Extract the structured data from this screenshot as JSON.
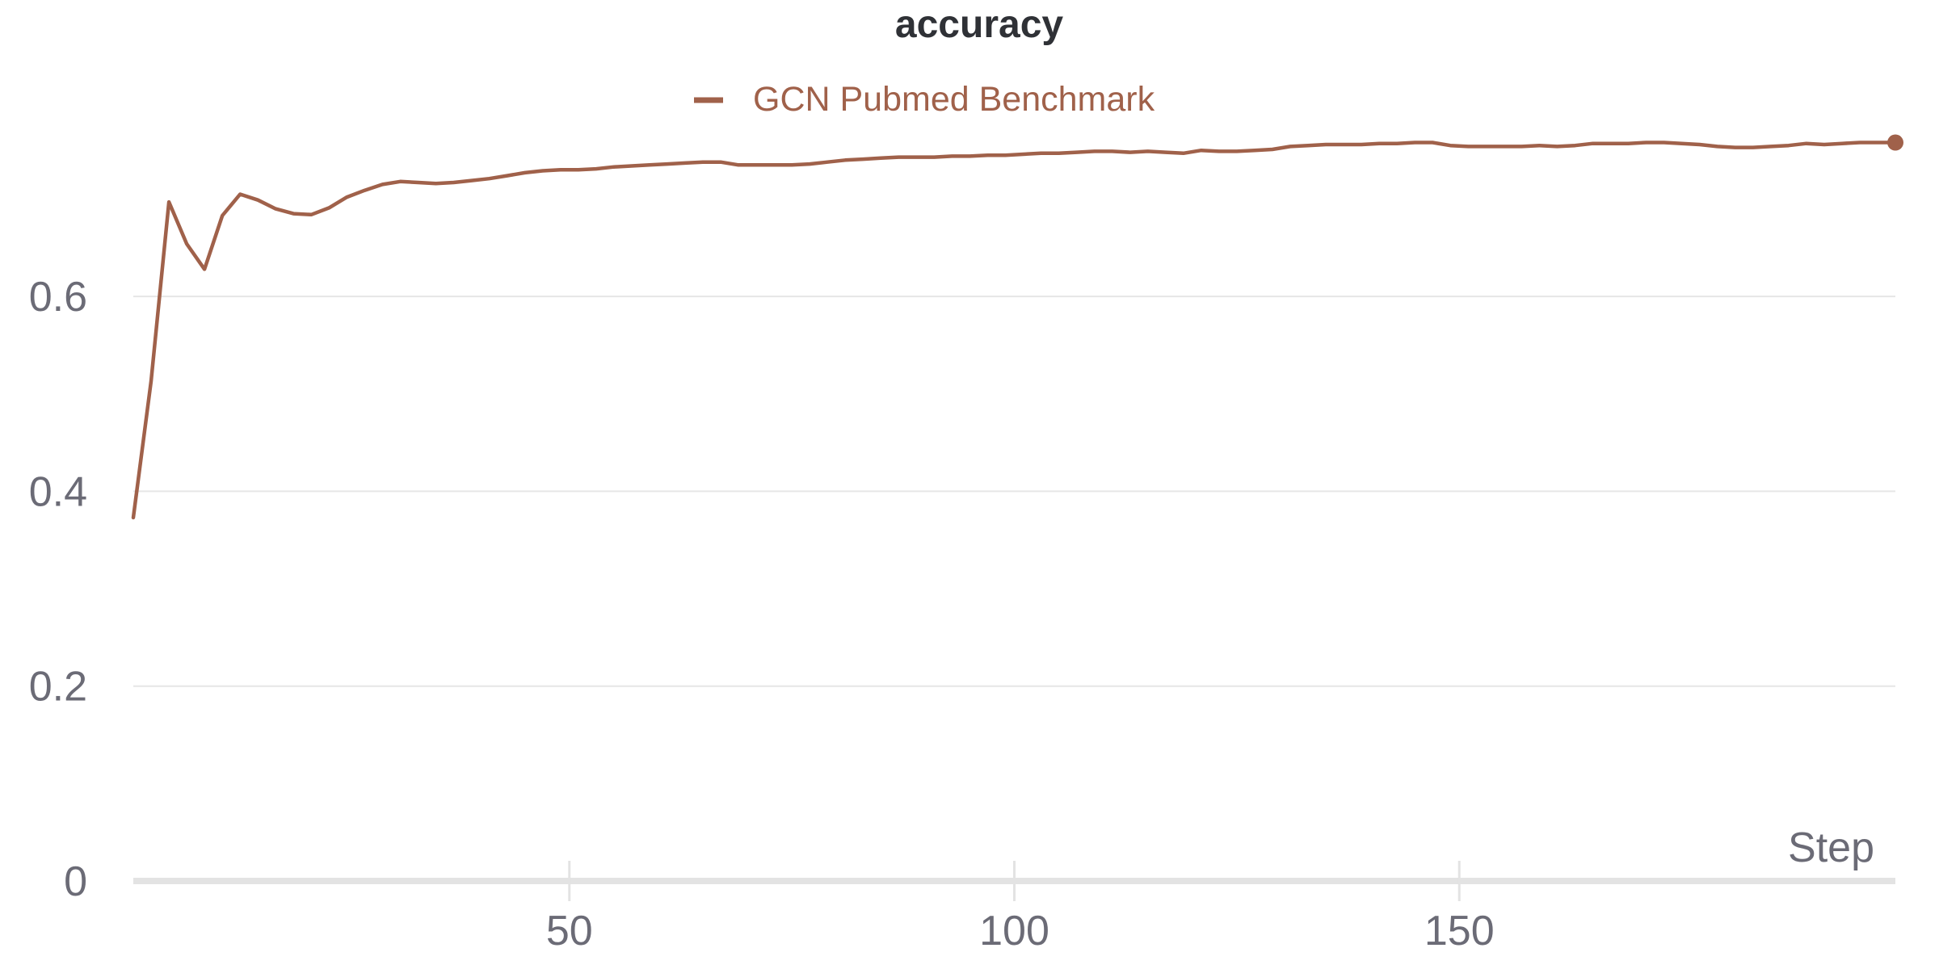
{
  "chart_data": {
    "type": "line",
    "title": "accuracy",
    "xlabel": "Step",
    "ylabel": "",
    "xlim": [
      1,
      199
    ],
    "ylim": [
      0,
      0.78
    ],
    "x_ticks": [
      50,
      100,
      150
    ],
    "x_tick_labels": [
      "50",
      "100",
      "150"
    ],
    "y_ticks": [
      0,
      0.2,
      0.4,
      0.6
    ],
    "y_tick_labels": [
      "0",
      "0.2",
      "0.4",
      "0.6"
    ],
    "grid": true,
    "legend_position": "top-center",
    "colors": {
      "series": "#a0614a",
      "title": "#2f3136",
      "ticks": "#6b6b76"
    },
    "series": [
      {
        "name": "GCN Pubmed Benchmark",
        "x": [
          1,
          3,
          5,
          7,
          9,
          11,
          13,
          15,
          17,
          19,
          21,
          23,
          25,
          27,
          29,
          31,
          33,
          35,
          37,
          39,
          41,
          43,
          45,
          47,
          49,
          51,
          53,
          55,
          57,
          59,
          61,
          63,
          65,
          67,
          69,
          71,
          73,
          75,
          77,
          79,
          81,
          83,
          85,
          87,
          89,
          91,
          93,
          95,
          97,
          99,
          101,
          103,
          105,
          107,
          109,
          111,
          113,
          115,
          117,
          119,
          121,
          123,
          125,
          127,
          129,
          131,
          133,
          135,
          137,
          139,
          141,
          143,
          145,
          147,
          149,
          151,
          153,
          155,
          157,
          159,
          161,
          163,
          165,
          167,
          169,
          171,
          173,
          175,
          177,
          179,
          181,
          183,
          185,
          187,
          189,
          191,
          193,
          195,
          197,
          199
        ],
        "y": [
          0.373,
          0.513,
          0.697,
          0.654,
          0.628,
          0.683,
          0.705,
          0.699,
          0.69,
          0.685,
          0.684,
          0.691,
          0.702,
          0.709,
          0.715,
          0.718,
          0.717,
          0.716,
          0.717,
          0.719,
          0.721,
          0.724,
          0.727,
          0.729,
          0.73,
          0.73,
          0.731,
          0.733,
          0.734,
          0.735,
          0.736,
          0.737,
          0.738,
          0.738,
          0.735,
          0.735,
          0.735,
          0.735,
          0.736,
          0.738,
          0.74,
          0.741,
          0.742,
          0.743,
          0.743,
          0.743,
          0.744,
          0.744,
          0.745,
          0.745,
          0.746,
          0.747,
          0.747,
          0.748,
          0.749,
          0.749,
          0.748,
          0.749,
          0.748,
          0.747,
          0.75,
          0.749,
          0.749,
          0.75,
          0.751,
          0.754,
          0.755,
          0.756,
          0.756,
          0.756,
          0.757,
          0.757,
          0.758,
          0.758,
          0.755,
          0.754,
          0.754,
          0.754,
          0.754,
          0.755,
          0.754,
          0.755,
          0.757,
          0.757,
          0.757,
          0.758,
          0.758,
          0.757,
          0.756,
          0.754,
          0.753,
          0.753,
          0.754,
          0.755,
          0.757,
          0.756,
          0.757,
          0.758,
          0.758,
          0.758
        ]
      }
    ]
  }
}
